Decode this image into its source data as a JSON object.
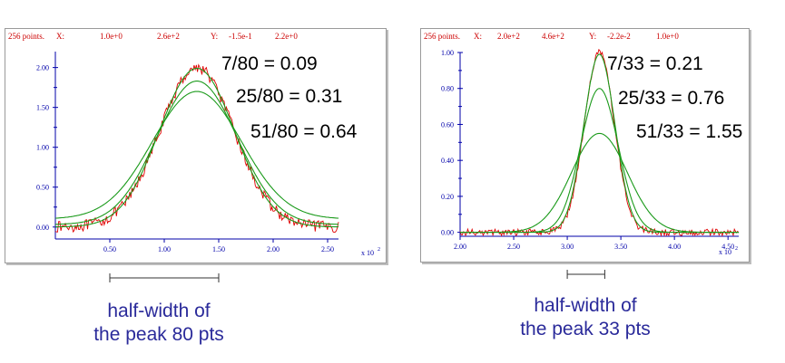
{
  "colors": {
    "noise": "#e00000",
    "fit": "#1a9a1a",
    "axis": "#0000aa",
    "header": "#cc0000",
    "caption": "#2a2a9a"
  },
  "chart_data": [
    {
      "type": "line",
      "header": {
        "points_label": "256 points.",
        "x_label": "X:",
        "x_min": "1.0e+0",
        "x_max": "2.6e+2",
        "y_label": "Y:",
        "y_min": "-1.5e-1",
        "y_max": "2.2e+0"
      },
      "x_multiplier_label": "x 10",
      "x_multiplier_exp": "2",
      "xlim": [
        0.0,
        2.6
      ],
      "ylim": [
        -0.15,
        2.2
      ],
      "x_ticks": [
        "0.50",
        "1.00",
        "1.50",
        "2.00",
        "2.50"
      ],
      "x_tick_values": [
        0.5,
        1.0,
        1.5,
        2.0,
        2.5
      ],
      "y_ticks": [
        "0.00",
        "0.50",
        "1.00",
        "1.50",
        "2.00"
      ],
      "y_tick_values": [
        0.0,
        0.5,
        1.0,
        1.5,
        2.0
      ],
      "peak_center": 1.3,
      "peak_height": 2.0,
      "noisy_sigma": 0.34,
      "noise_amplitude": 0.07,
      "series": [
        {
          "type": "noisy-data",
          "amplitude": 2.0,
          "sigma": 0.34,
          "baseline": 0.0
        },
        {
          "type": "fit",
          "amplitude": 1.99,
          "sigma": 0.345,
          "baseline": 0.0
        },
        {
          "type": "fit",
          "amplitude": 1.8,
          "sigma": 0.37,
          "baseline": 0.03
        },
        {
          "type": "fit",
          "amplitude": 1.6,
          "sigma": 0.41,
          "baseline": 0.1
        }
      ],
      "annotations": [
        "7/80 = 0.09",
        "25/80 = 0.31",
        "51/80 = 0.64"
      ],
      "half_width_bracket": [
        0.5,
        1.5
      ]
    },
    {
      "type": "line",
      "header": {
        "points_label": "256 points.",
        "x_label": "X:",
        "x_min": "2.0e+2",
        "x_max": "4.6e+2",
        "y_label": "Y:",
        "y_min": "-2.2e-2",
        "y_max": "1.0e+0"
      },
      "x_multiplier_label": "x 10",
      "x_multiplier_exp": "2",
      "xlim": [
        2.0,
        4.6
      ],
      "ylim": [
        -0.022,
        1.0
      ],
      "x_ticks": [
        "2.00",
        "2.50",
        "3.00",
        "3.50",
        "4.00",
        "4.50"
      ],
      "x_tick_values": [
        2.0,
        2.5,
        3.0,
        3.5,
        4.0,
        4.5
      ],
      "y_ticks": [
        "0.00",
        "0.20",
        "0.40",
        "0.60",
        "0.80",
        "1.00"
      ],
      "y_tick_values": [
        0.0,
        0.2,
        0.4,
        0.6,
        0.8,
        1.0
      ],
      "peak_center": 3.3,
      "peak_height": 1.0,
      "noisy_sigma": 0.14,
      "noise_amplitude": 0.018,
      "series": [
        {
          "type": "noisy-data",
          "amplitude": 1.0,
          "sigma": 0.14,
          "baseline": 0.0
        },
        {
          "type": "fit",
          "amplitude": 0.99,
          "sigma": 0.145,
          "baseline": 0.0
        },
        {
          "type": "fit",
          "amplitude": 0.8,
          "sigma": 0.175,
          "baseline": 0.0
        },
        {
          "type": "fit",
          "amplitude": 0.55,
          "sigma": 0.26,
          "baseline": 0.0
        }
      ],
      "annotations": [
        "7/33 = 0.21",
        "25/33 = 0.76",
        "51/33 = 1.55"
      ],
      "half_width_bracket": [
        3.0,
        3.35
      ]
    }
  ],
  "captions": {
    "left_line1": "half-width of",
    "left_line2": "the peak 80 pts",
    "right_line1": "half-width of",
    "right_line2": "the peak 33 pts"
  }
}
